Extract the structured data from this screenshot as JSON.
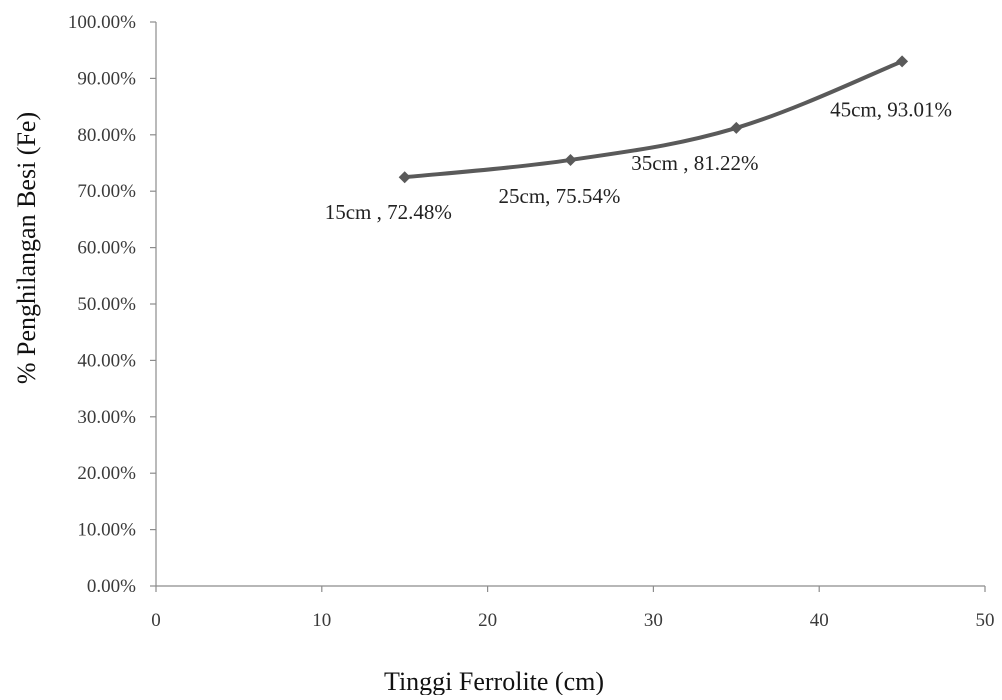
{
  "chart_data": {
    "type": "line",
    "title": "",
    "xlabel": "Tinggi Ferrolite (cm)",
    "ylabel": "% Penghilangan Besi (Fe)",
    "xlim": [
      0,
      50
    ],
    "ylim": [
      0,
      100
    ],
    "x_ticks": [
      0,
      10,
      20,
      30,
      40,
      50
    ],
    "y_ticks": [
      0,
      10,
      20,
      30,
      40,
      50,
      60,
      70,
      80,
      90,
      100
    ],
    "y_tick_labels": [
      "0.00%",
      "10.00%",
      "20.00%",
      "30.00%",
      "40.00%",
      "50.00%",
      "60.00%",
      "70.00%",
      "80.00%",
      "90.00%",
      "100.00%"
    ],
    "grid": false,
    "legend": "none",
    "marker": "diamond",
    "series": [
      {
        "color": "#5a5a5a",
        "points": [
          {
            "x": 15,
            "y": 72.48,
            "label": "15cm  , 72.48%"
          },
          {
            "x": 25,
            "y": 75.54,
            "label": "25cm, 75.54%"
          },
          {
            "x": 35,
            "y": 81.22,
            "label": "35cm , 81.22%"
          },
          {
            "x": 45,
            "y": 93.01,
            "label": "45cm, 93.01%"
          }
        ]
      }
    ]
  }
}
